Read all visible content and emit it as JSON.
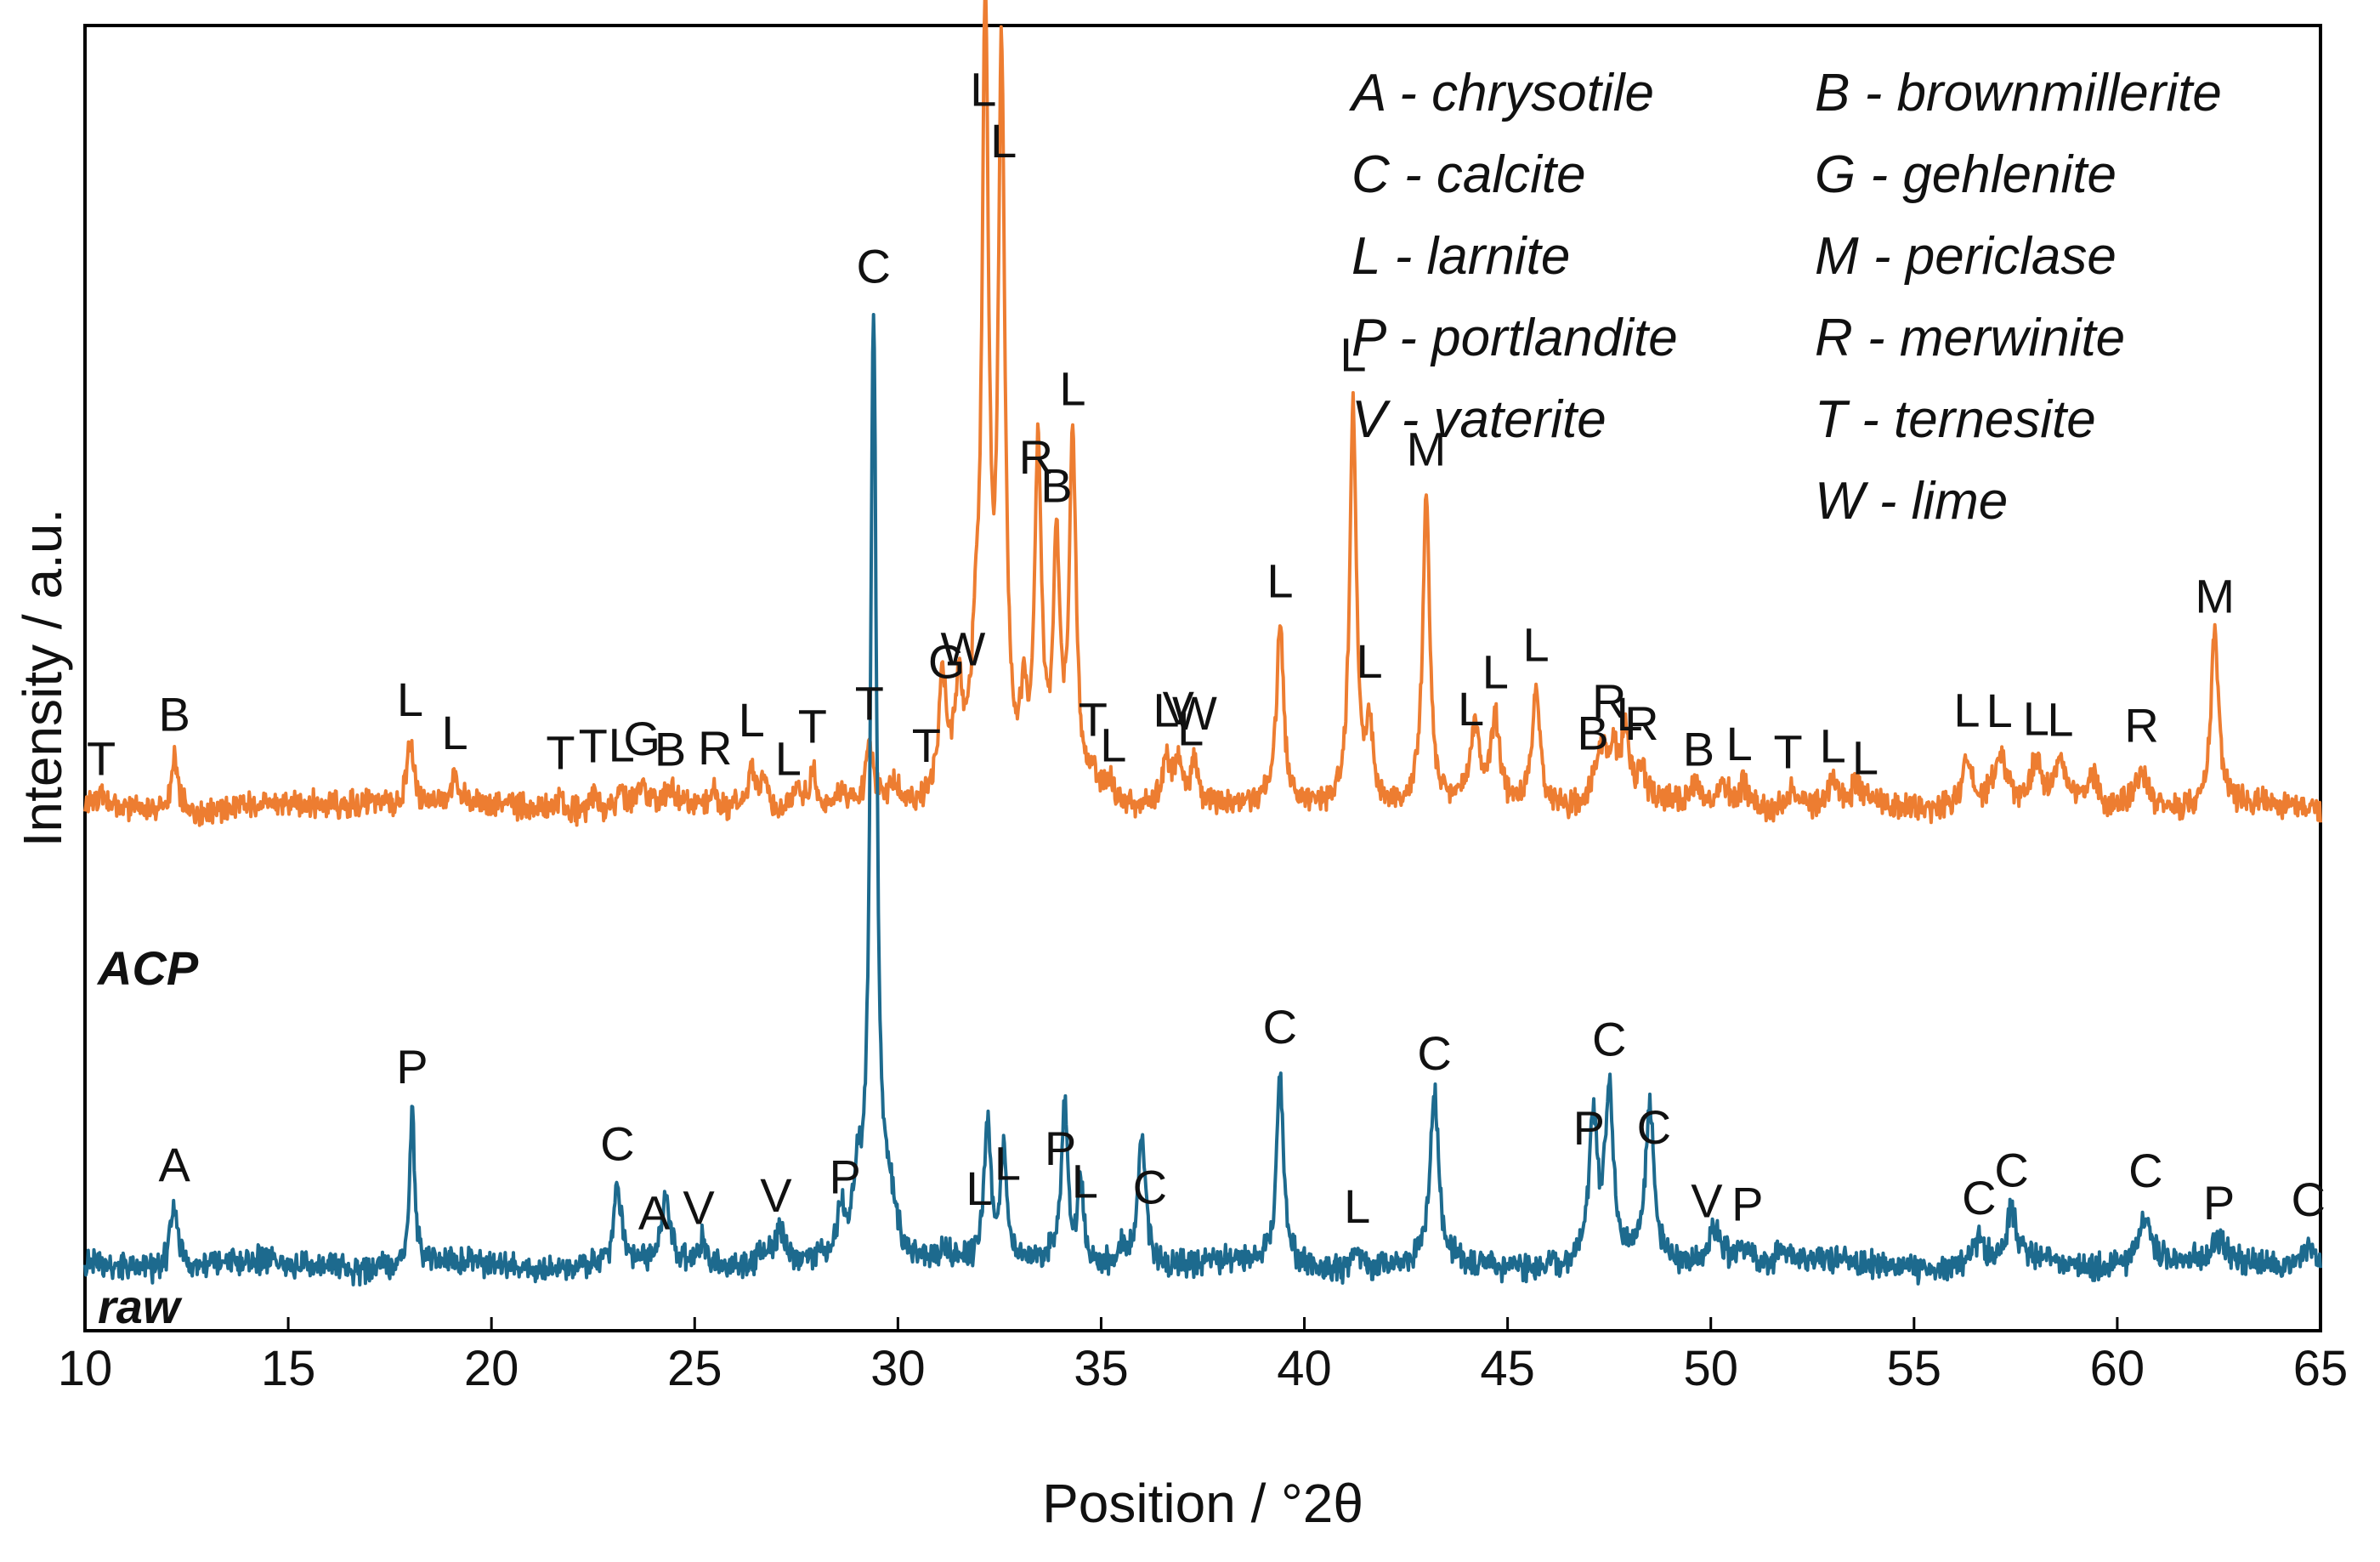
{
  "chart_data": {
    "type": "line",
    "xlabel": "Position / °2θ",
    "ylabel": "Intensity / a.u.",
    "xlim": [
      10,
      65
    ],
    "ylim": [
      0,
      100
    ],
    "xticks": [
      10,
      15,
      20,
      25,
      30,
      35,
      40,
      45,
      50,
      55,
      60,
      65
    ],
    "grid": false,
    "legend": {
      "placement": "top-right",
      "entries": [
        {
          "key": "A",
          "name": "chrysotile",
          "text": "A - chrysotile"
        },
        {
          "key": "C",
          "name": "calcite",
          "text": "C - calcite"
        },
        {
          "key": "L",
          "name": "larnite",
          "text": "L - larnite"
        },
        {
          "key": "P",
          "name": "portlandite",
          "text": "P - portlandite"
        },
        {
          "key": "V",
          "name": "vaterite",
          "text": "V - vaterite"
        },
        {
          "key": "B",
          "name": "brownmillerite",
          "text": "B - brownmillerite"
        },
        {
          "key": "G",
          "name": "gehlenite",
          "text": "G - gehlenite"
        },
        {
          "key": "M",
          "name": "periclase",
          "text": "M - periclase"
        },
        {
          "key": "R",
          "name": "merwinite",
          "text": "R - merwinite"
        },
        {
          "key": "T",
          "name": "ternesite",
          "text": "T - ternesite"
        },
        {
          "key": "W",
          "name": "lime",
          "text": "W - lime"
        }
      ]
    },
    "series": [
      {
        "name": "ACP",
        "color": "#ED7D31",
        "baseline": 40,
        "peaks": [
          [
            10.4,
            0.6,
            0.1
          ],
          [
            12.2,
            4,
            0.1
          ],
          [
            17.0,
            0.8,
            0.4
          ],
          [
            18.0,
            5,
            0.12
          ],
          [
            19.1,
            2.5,
            0.1
          ],
          [
            21.7,
            1.0,
            0.1
          ],
          [
            22.5,
            1.5,
            0.1
          ],
          [
            23.2,
            1.5,
            0.1
          ],
          [
            23.7,
            2.0,
            0.1
          ],
          [
            24.4,
            1.2,
            0.1
          ],
          [
            25.5,
            1.3,
            0.1
          ],
          [
            26.4,
            3.2,
            0.1
          ],
          [
            26.7,
            2.5,
            0.1
          ],
          [
            27.5,
            1.5,
            0.1
          ],
          [
            27.9,
            2.8,
            0.1
          ],
          [
            28.6,
            1.2,
            0.1
          ],
          [
            29.3,
            4.5,
            0.1
          ],
          [
            29.9,
            1.5,
            0.1
          ],
          [
            31.1,
            9.5,
            0.12
          ],
          [
            31.5,
            8,
            0.12
          ],
          [
            31.9,
            8,
            0.12
          ],
          [
            32.15,
            58,
            0.1
          ],
          [
            32.55,
            55,
            0.1
          ],
          [
            33.1,
            6,
            0.1
          ],
          [
            33.45,
            26,
            0.1
          ],
          [
            33.9,
            18,
            0.1
          ],
          [
            34.3,
            27,
            0.1
          ],
          [
            34.8,
            1.8,
            0.1
          ],
          [
            35.2,
            1.8,
            0.1
          ],
          [
            36.6,
            3.5,
            0.12
          ],
          [
            36.9,
            3.5,
            0.12
          ],
          [
            37.3,
            3.5,
            0.12
          ],
          [
            39.4,
            14,
            0.1
          ],
          [
            41.2,
            31,
            0.1
          ],
          [
            41.6,
            6,
            0.1
          ],
          [
            43.0,
            24,
            0.1
          ],
          [
            44.2,
            5.5,
            0.15
          ],
          [
            44.7,
            6.5,
            0.12
          ],
          [
            45.7,
            9,
            0.12
          ],
          [
            47.3,
            4,
            0.2
          ],
          [
            47.6,
            3.5,
            0.15
          ],
          [
            47.9,
            5,
            0.12
          ],
          [
            48.3,
            2.5,
            0.1
          ],
          [
            49.6,
            1.5,
            0.15
          ],
          [
            50.3,
            2,
            0.15
          ],
          [
            50.8,
            2,
            0.15
          ],
          [
            52.0,
            1.4,
            0.15
          ],
          [
            53.0,
            1.4,
            0.15
          ],
          [
            53.6,
            1.5,
            0.15
          ],
          [
            56.3,
            4,
            0.15
          ],
          [
            57.1,
            4,
            0.2
          ],
          [
            58.0,
            3.2,
            0.15
          ],
          [
            58.6,
            3.2,
            0.15
          ],
          [
            59.4,
            2.2,
            0.15
          ],
          [
            60.6,
            3,
            0.2
          ],
          [
            62.4,
            13,
            0.12
          ]
        ],
        "annotations": [
          {
            "x": 10.4,
            "label": "T"
          },
          {
            "x": 12.2,
            "label": "B"
          },
          {
            "x": 18.0,
            "label": "L"
          },
          {
            "x": 19.1,
            "label": "L"
          },
          {
            "x": 21.7,
            "label": "T"
          },
          {
            "x": 22.5,
            "label": "T"
          },
          {
            "x": 23.2,
            "label": "L"
          },
          {
            "x": 23.7,
            "label": "G"
          },
          {
            "x": 24.4,
            "label": "B"
          },
          {
            "x": 25.5,
            "label": "R"
          },
          {
            "x": 26.4,
            "label": "L"
          },
          {
            "x": 27.3,
            "label": "L"
          },
          {
            "x": 27.9,
            "label": "T"
          },
          {
            "x": 29.3,
            "label": "T"
          },
          {
            "x": 30.7,
            "label": "T"
          },
          {
            "x": 31.2,
            "label": "G"
          },
          {
            "x": 31.6,
            "label": "W"
          },
          {
            "x": 32.1,
            "label": "L"
          },
          {
            "x": 32.6,
            "label": "L"
          },
          {
            "x": 33.4,
            "label": "R"
          },
          {
            "x": 33.9,
            "label": "B"
          },
          {
            "x": 34.3,
            "label": "L"
          },
          {
            "x": 34.8,
            "label": "T"
          },
          {
            "x": 35.3,
            "label": "L"
          },
          {
            "x": 36.6,
            "label": "L"
          },
          {
            "x": 36.9,
            "label": "V"
          },
          {
            "x": 37.2,
            "label": "L"
          },
          {
            "x": 37.3,
            "label": "W"
          },
          {
            "x": 39.4,
            "label": "L"
          },
          {
            "x": 41.2,
            "label": "L"
          },
          {
            "x": 41.6,
            "label": "L"
          },
          {
            "x": 43.0,
            "label": "M"
          },
          {
            "x": 44.1,
            "label": "L"
          },
          {
            "x": 44.7,
            "label": "L"
          },
          {
            "x": 45.7,
            "label": "L"
          },
          {
            "x": 47.1,
            "label": "B"
          },
          {
            "x": 47.5,
            "label": "R"
          },
          {
            "x": 48.0,
            "label": "L"
          },
          {
            "x": 48.3,
            "label": "R"
          },
          {
            "x": 49.7,
            "label": "B"
          },
          {
            "x": 50.7,
            "label": "L"
          },
          {
            "x": 51.9,
            "label": "T"
          },
          {
            "x": 53.0,
            "label": "L"
          },
          {
            "x": 53.8,
            "label": "L"
          },
          {
            "x": 56.3,
            "label": "L"
          },
          {
            "x": 57.1,
            "label": "L"
          },
          {
            "x": 58.0,
            "label": "L"
          },
          {
            "x": 58.6,
            "label": "L"
          },
          {
            "x": 60.6,
            "label": "R"
          },
          {
            "x": 62.4,
            "label": "M"
          }
        ]
      },
      {
        "name": "raw",
        "color": "#1D6A8E",
        "baseline": 5,
        "peaks": [
          [
            12.2,
            4.5,
            0.12
          ],
          [
            18.05,
            12,
            0.07
          ],
          [
            23.1,
            6,
            0.1
          ],
          [
            24.3,
            5,
            0.12
          ],
          [
            25.2,
            2,
            0.1
          ],
          [
            26.7,
            1.2,
            0.15
          ],
          [
            27.1,
            2.5,
            0.15
          ],
          [
            28.6,
            3,
            0.1
          ],
          [
            29.0,
            5,
            0.12
          ],
          [
            29.4,
            72,
            0.09
          ],
          [
            29.8,
            4,
            0.2
          ],
          [
            31.2,
            1.5,
            0.2
          ],
          [
            32.2,
            11,
            0.1
          ],
          [
            32.6,
            8,
            0.1
          ],
          [
            34.1,
            12,
            0.09
          ],
          [
            34.5,
            6,
            0.09
          ],
          [
            35.5,
            1.5,
            0.1
          ],
          [
            36.0,
            10,
            0.12
          ],
          [
            39.4,
            15,
            0.1
          ],
          [
            41.3,
            1.2,
            0.1
          ],
          [
            43.2,
            13,
            0.12
          ],
          [
            47.1,
            11,
            0.12
          ],
          [
            47.5,
            13,
            0.12
          ],
          [
            48.5,
            12,
            0.12
          ],
          [
            50.1,
            3,
            0.2
          ],
          [
            50.8,
            1.5,
            0.2
          ],
          [
            51.8,
            1.0,
            0.2
          ],
          [
            56.6,
            1.8,
            0.15
          ],
          [
            57.4,
            4,
            0.15
          ],
          [
            60.7,
            4,
            0.2
          ],
          [
            62.5,
            1.5,
            0.2
          ],
          [
            64.7,
            1.8,
            0.2
          ]
        ],
        "annotations": [
          {
            "x": 12.2,
            "label": "A"
          },
          {
            "x": 18.05,
            "label": "P"
          },
          {
            "x": 23.1,
            "label": "C"
          },
          {
            "x": 24.0,
            "label": "A"
          },
          {
            "x": 25.1,
            "label": "V"
          },
          {
            "x": 27.0,
            "label": "V"
          },
          {
            "x": 28.7,
            "label": "P"
          },
          {
            "x": 29.4,
            "label": "C"
          },
          {
            "x": 32.0,
            "label": "L"
          },
          {
            "x": 32.7,
            "label": "L"
          },
          {
            "x": 34.0,
            "label": "P"
          },
          {
            "x": 34.6,
            "label": "L"
          },
          {
            "x": 36.2,
            "label": "C"
          },
          {
            "x": 39.4,
            "label": "C"
          },
          {
            "x": 41.3,
            "label": "L"
          },
          {
            "x": 43.2,
            "label": "C"
          },
          {
            "x": 47.0,
            "label": "P"
          },
          {
            "x": 47.5,
            "label": "C"
          },
          {
            "x": 48.6,
            "label": "C"
          },
          {
            "x": 49.9,
            "label": "V"
          },
          {
            "x": 50.9,
            "label": "P"
          },
          {
            "x": 56.6,
            "label": "C"
          },
          {
            "x": 57.4,
            "label": "C"
          },
          {
            "x": 60.7,
            "label": "C"
          },
          {
            "x": 62.5,
            "label": "P"
          },
          {
            "x": 64.7,
            "label": "C"
          }
        ]
      }
    ]
  }
}
